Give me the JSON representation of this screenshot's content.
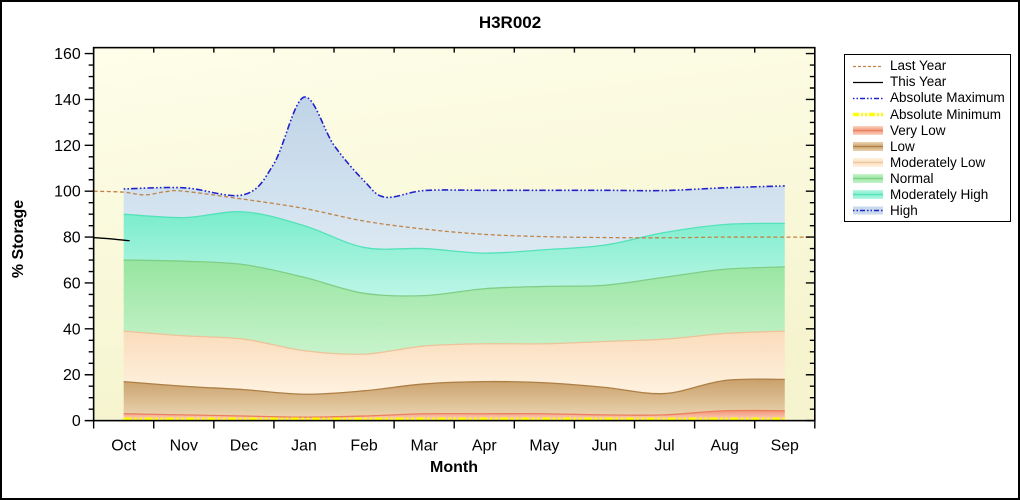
{
  "title": "H3R002",
  "axes": {
    "y_label": "% Storage",
    "x_label": "Month"
  },
  "colors": {
    "figure_bg": "#FFFFFF",
    "plot_bg_top": "#FEFEEA",
    "plot_bg_bottom": "#F5F4CE",
    "frame": "#000000",
    "last_year": "#C08448",
    "this_year": "#000000",
    "absolute_maximum": "#2222CC",
    "absolute_minimum": "#FFFF00",
    "high_legend_bg": "#C9DAEC",
    "bands": {
      "Very Low": {
        "edge": "#EC7E5C",
        "top": "#F29578",
        "bottom": "#FBD6C2"
      },
      "Low": {
        "edge": "#AD7F45",
        "top": "#C9A06B",
        "bottom": "#EBD4B0"
      },
      "Moderately Low": {
        "edge": "#ECC39A",
        "top": "#FADCBB",
        "bottom": "#FEF2E0"
      },
      "Normal": {
        "edge": "#7FCE86",
        "top": "#97E5A0",
        "bottom": "#C8F3CC"
      },
      "Moderately High": {
        "edge": "#54E2B9",
        "top": "#79EDCB",
        "bottom": "#BCF6E6"
      },
      "High": {
        "edge": "#2222CC",
        "top": "#BFD4E7",
        "bottom": "#DCE9F3"
      }
    }
  },
  "legend": {
    "items": [
      {
        "label": "Last Year",
        "kind": "dashed_line"
      },
      {
        "label": "This Year",
        "kind": "solid_line"
      },
      {
        "label": "Absolute Maximum",
        "kind": "dashdot_line"
      },
      {
        "label": "Absolute Minimum",
        "kind": "thick_dashdot_line"
      },
      {
        "label": "Very Low",
        "kind": "band",
        "band": "Very Low"
      },
      {
        "label": "Low",
        "kind": "band",
        "band": "Low"
      },
      {
        "label": "Moderately Low",
        "kind": "band",
        "band": "Moderately Low"
      },
      {
        "label": "Normal",
        "kind": "band",
        "band": "Normal"
      },
      {
        "label": "Moderately High",
        "kind": "band",
        "band": "Moderately High"
      },
      {
        "label": "High",
        "kind": "band_with_line",
        "band": "High"
      }
    ]
  },
  "chart_data": {
    "type": "area",
    "title": "H3R002",
    "xlabel": "Month",
    "ylabel": "% Storage",
    "ylim": [
      0,
      160
    ],
    "grid": false,
    "legend_position": "right-outside",
    "y_ticks": [
      0,
      20,
      40,
      60,
      80,
      100,
      120,
      140,
      160
    ],
    "months": [
      "Oct",
      "Nov",
      "Dec",
      "Jan",
      "Feb",
      "Mar",
      "Apr",
      "May",
      "Jun",
      "Jul",
      "Aug",
      "Sep"
    ],
    "boundaries": {
      "very_low_top": [
        3,
        2.5,
        2,
        1.5,
        2,
        3,
        3,
        3,
        2.5,
        2.5,
        4.3,
        4.3
      ],
      "low_top": [
        17,
        15,
        13.5,
        11.5,
        13,
        16,
        17,
        16.5,
        14.5,
        11.8,
        17.5,
        18
      ],
      "moderately_low_top": [
        39,
        37,
        35.5,
        30.5,
        29,
        32.5,
        33.5,
        33.5,
        34.5,
        35.5,
        38,
        39
      ],
      "normal_top": [
        70,
        69.5,
        68,
        62.5,
        55.5,
        54.5,
        57.5,
        58.5,
        59,
        62.5,
        66,
        67
      ],
      "moderately_high_top": [
        90,
        88.5,
        91,
        85,
        75.5,
        75,
        73,
        74.5,
        76.5,
        82,
        85.5,
        86
      ],
      "absolute_maximum": {
        "x": [
          0,
          1,
          2,
          2.5,
          3,
          3.5,
          4,
          4.35,
          5,
          6,
          7,
          8,
          9,
          10,
          11
        ],
        "values": [
          101,
          101.5,
          98.5,
          112,
          141,
          120,
          104.5,
          97.4,
          100.3,
          100.4,
          100.4,
          100.4,
          100.3,
          101.5,
          102.3
        ]
      }
    },
    "bands": [
      {
        "name": "Very Low",
        "from": null,
        "to": "very_low_top"
      },
      {
        "name": "Low",
        "from": "very_low_top",
        "to": "low_top"
      },
      {
        "name": "Moderately Low",
        "from": "low_top",
        "to": "moderately_low_top"
      },
      {
        "name": "Normal",
        "from": "moderately_low_top",
        "to": "normal_top"
      },
      {
        "name": "Moderately High",
        "from": "normal_top",
        "to": "moderately_high_top"
      },
      {
        "name": "High",
        "from": "moderately_high_top",
        "to": "absolute_maximum"
      }
    ],
    "lines": [
      {
        "name": "Last Year",
        "style": "dashed",
        "color_key": "last_year",
        "x": [
          -0.5,
          0,
          0.35,
          0.7,
          1,
          2,
          3,
          4,
          5,
          6,
          7,
          8,
          9,
          10,
          11,
          11.5
        ],
        "values": [
          100,
          99.6,
          98.4,
          99.8,
          100,
          96.5,
          92.5,
          87,
          83.5,
          81.2,
          80.2,
          79.8,
          79.7,
          80,
          80,
          80
        ]
      },
      {
        "name": "This Year",
        "style": "solid",
        "color_key": "this_year",
        "x": [
          -0.5,
          -0.2,
          0.1
        ],
        "values": [
          79.8,
          79.2,
          78.4
        ]
      },
      {
        "name": "Absolute Minimum",
        "style": "thick_dashdot",
        "color_key": "absolute_minimum",
        "x": [
          0,
          11
        ],
        "values": [
          0.6,
          0.6
        ]
      },
      {
        "name": "Absolute Maximum",
        "style": "dashdot",
        "color_key": "absolute_maximum",
        "boundary": "absolute_maximum"
      }
    ]
  }
}
